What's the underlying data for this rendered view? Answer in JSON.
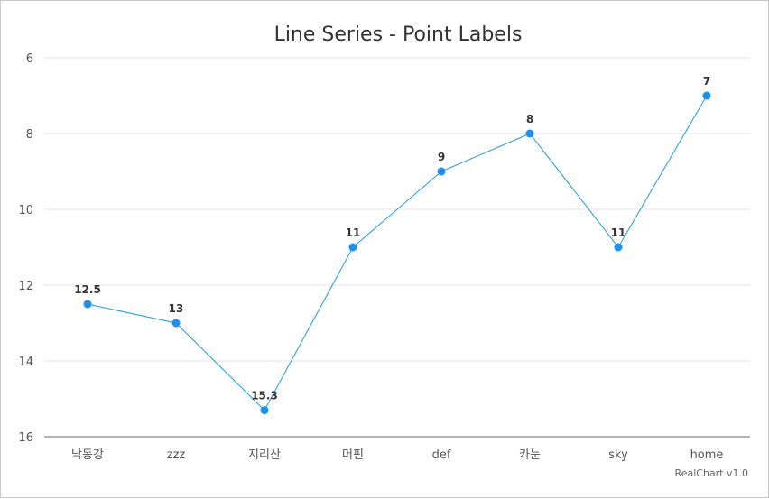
{
  "chart_data": {
    "type": "line",
    "title": "Line Series - Point Labels",
    "xlabel": "",
    "ylabel": "",
    "categories": [
      "낙동강",
      "zzz",
      "지리산",
      "머핀",
      "def",
      "카눈",
      "sky",
      "home"
    ],
    "series": [
      {
        "values": [
          12.5,
          13,
          15.3,
          11,
          9,
          8,
          11,
          7
        ],
        "labels": [
          "12.5",
          "13",
          "15.3",
          "11",
          "9",
          "8",
          "11",
          "7"
        ]
      }
    ],
    "ylim": [
      6,
      16
    ],
    "y_reversed": true,
    "y_ticks": [
      6,
      8,
      10,
      12,
      14,
      16
    ],
    "grid": true,
    "legend": "none",
    "colors": {
      "line": "#1e9ae0",
      "point": "#1e90f0",
      "grid": "#e4e4e4",
      "axis": "#b4b4b4"
    },
    "credit": "RealChart v1.0"
  }
}
